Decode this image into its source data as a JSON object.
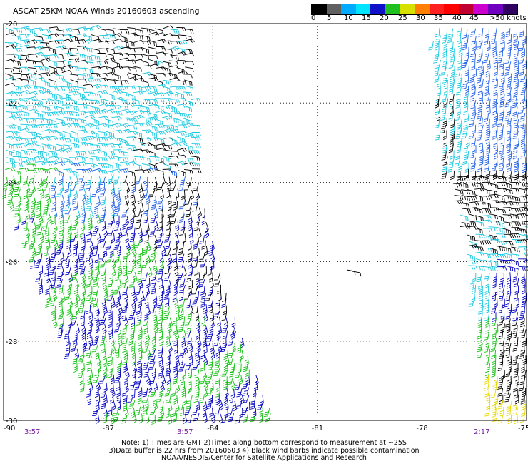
{
  "title": "ASCAT 25KM NOAA Winds 20160603 ascending",
  "colorbar": {
    "colors": [
      "#000000",
      "#606060",
      "#00aaff",
      "#00e5ff",
      "#1010c8",
      "#20c020",
      "#d8e000",
      "#ff8000",
      "#ff2020",
      "#ff0000",
      "#c00030",
      "#cc00cc",
      "#7000c0",
      "#300060"
    ],
    "labels": [
      "0",
      "5",
      "10",
      "15",
      "20",
      "25",
      "30",
      "35",
      "40",
      "45",
      ">50 knots"
    ]
  },
  "axes": {
    "lat_labels": [
      "-20",
      "-22",
      "-24",
      "-26",
      "-28",
      "-30"
    ],
    "lon_labels": [
      "-90",
      "-87",
      "-84",
      "-81",
      "-78",
      "-75"
    ]
  },
  "pass_times": [
    "3:57",
    "3:57",
    "2:17"
  ],
  "notes": [
    "Note: 1) Times are GMT 2)Times along bottom correspond to measurement at ~25S",
    "3)Data buffer is 22 hrs from 20160603 4) Black wind barbs indicate possible contamination",
    "NOAA/NESDIS/Center for Satellite Applications and Research"
  ],
  "wind_colors": {
    "black": "#000000",
    "cyan": "#18c8e0",
    "blue_light": "#2060e8",
    "blue": "#0000c0",
    "green": "#10c010",
    "yellow": "#e8d800"
  }
}
